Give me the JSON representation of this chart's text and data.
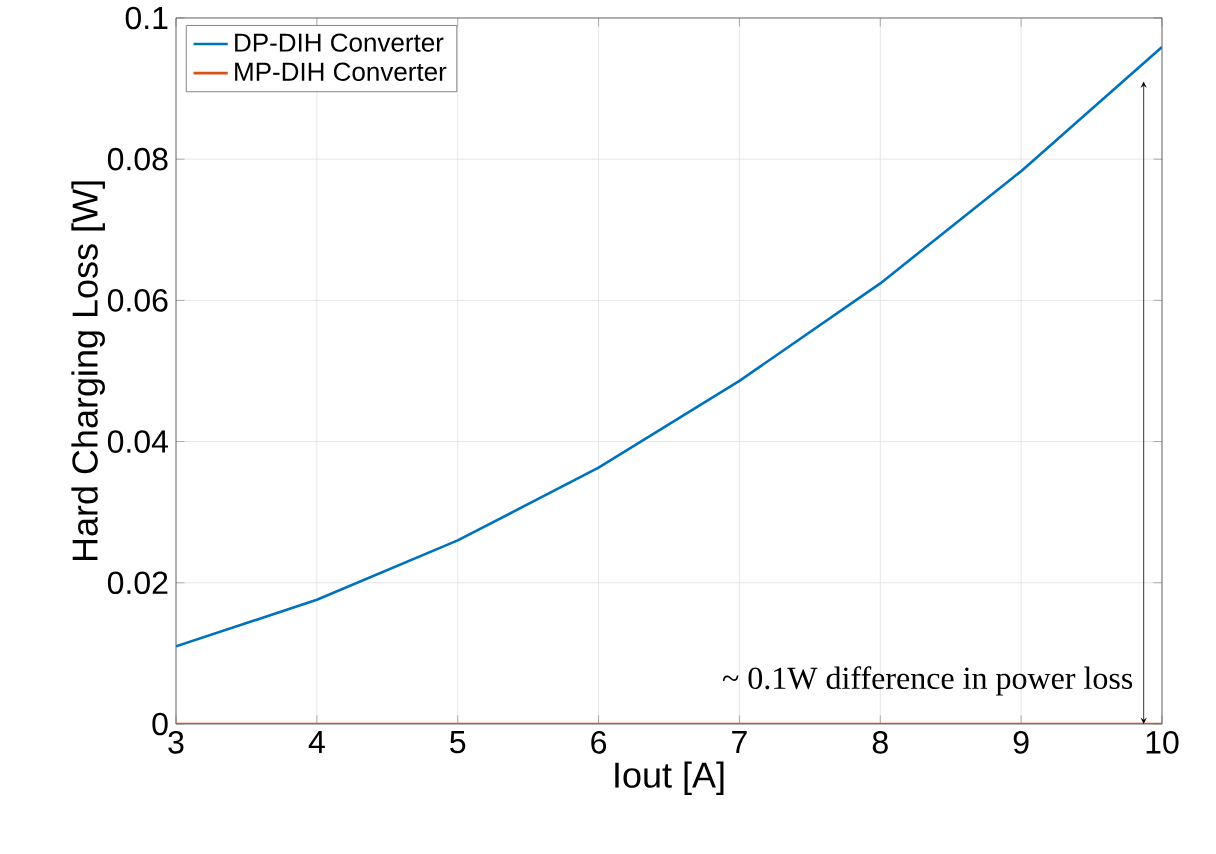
{
  "chart_data": {
    "type": "line",
    "xlabel": "Iout [A]",
    "ylabel": "Hard Charging Loss [W]",
    "x": [
      3,
      4,
      5,
      6,
      7,
      8,
      9,
      10
    ],
    "series": [
      {
        "name": "DP-DIH Converter",
        "color": "#0072bd",
        "values": [
          0.011,
          0.0176,
          0.026,
          0.0363,
          0.0486,
          0.0624,
          0.0783,
          0.0959
        ]
      },
      {
        "name": "MP-DIH Converter",
        "color": "#d95319",
        "values": [
          0,
          0,
          0,
          0,
          0,
          0,
          0,
          0
        ]
      }
    ],
    "xlim": [
      3,
      10
    ],
    "ylim": [
      0,
      0.1
    ],
    "xticks": [
      3,
      4,
      5,
      6,
      7,
      8,
      9,
      10
    ],
    "yticks": [
      0,
      {
        "value": 0.02,
        "label": "0.02"
      },
      {
        "value": 0.04,
        "label": "0.04"
      },
      {
        "value": 0.06,
        "label": "0.06"
      },
      {
        "value": 0.08,
        "label": "0.08"
      },
      {
        "value": 0.1,
        "label": "0.1"
      }
    ],
    "grid": true,
    "legend": "top left",
    "annotations": [
      {
        "text": "~ 0.1W difference in power loss",
        "x": 9.87,
        "y": 0.091
      }
    ]
  }
}
